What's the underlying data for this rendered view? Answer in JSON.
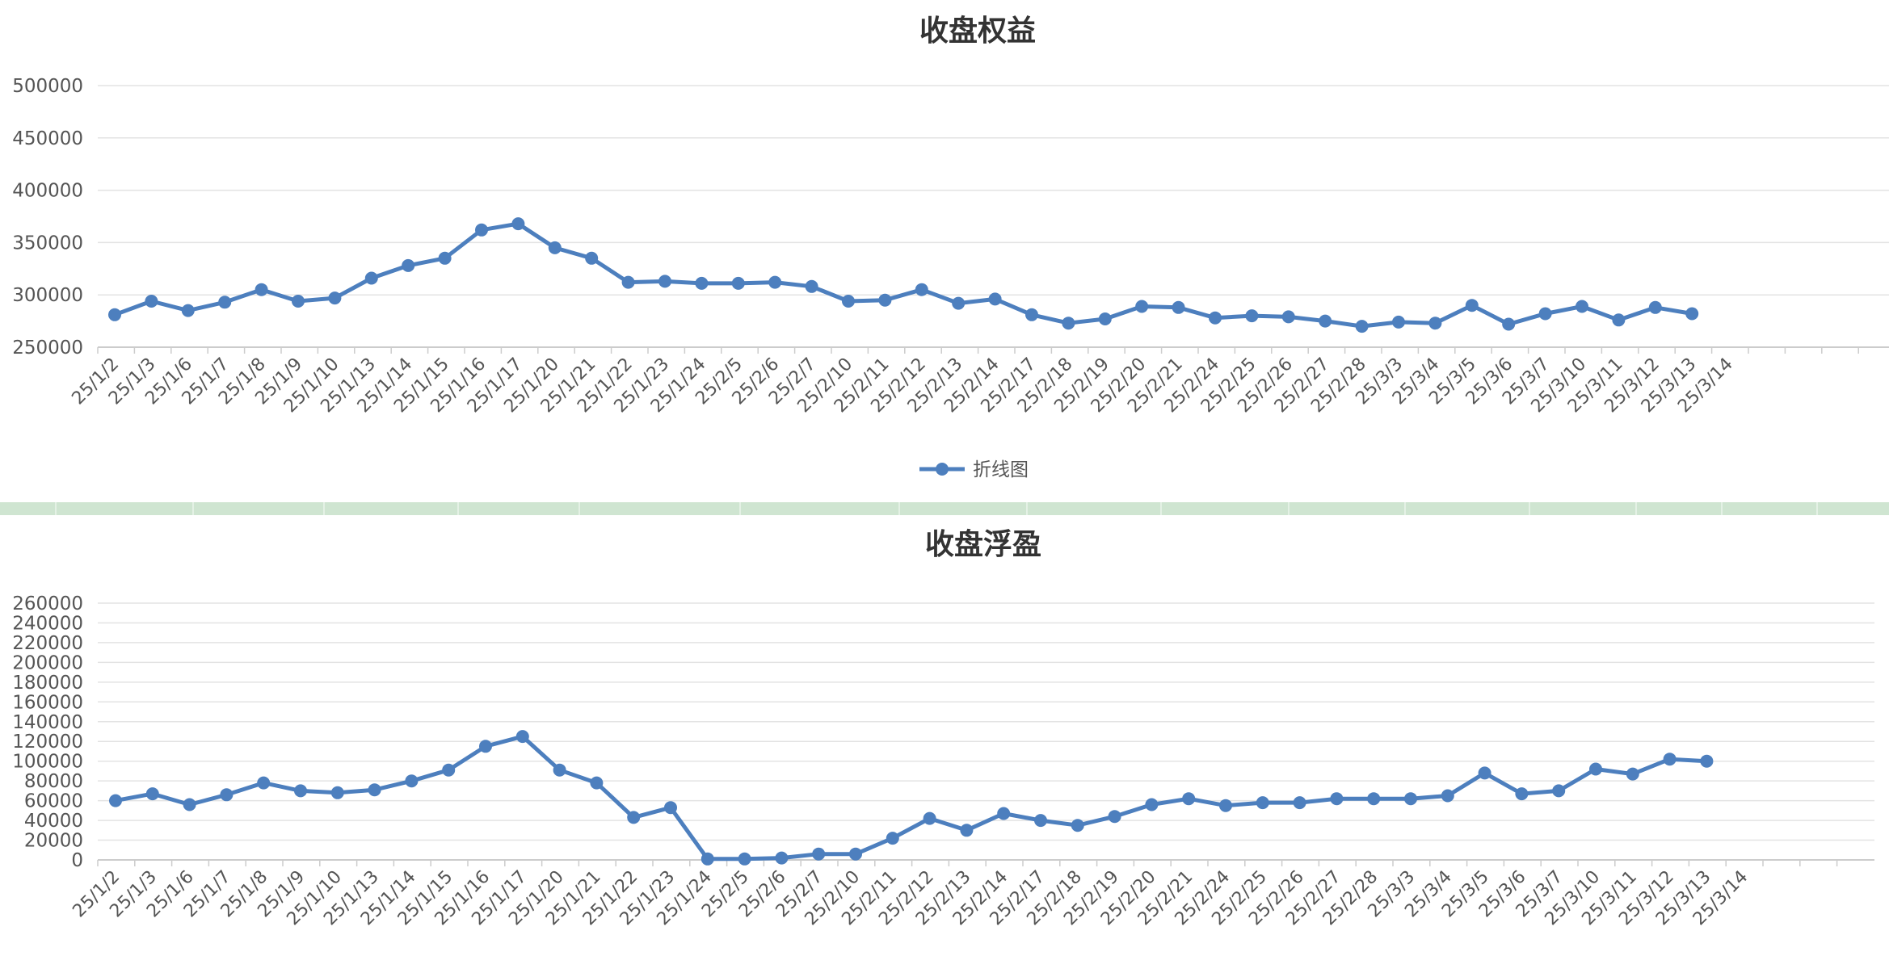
{
  "colors": {
    "series": "#4d7fbe",
    "grid": "#e3e3e3",
    "axis": "#cccccc",
    "divider": "#cfe5d1"
  },
  "chart_data": [
    {
      "type": "line",
      "title": "收盘权益",
      "categories": [
        "25/1/2",
        "25/1/3",
        "25/1/6",
        "25/1/7",
        "25/1/8",
        "25/1/9",
        "25/1/10",
        "25/1/13",
        "25/1/14",
        "25/1/15",
        "25/1/16",
        "25/1/17",
        "25/1/20",
        "25/1/21",
        "25/1/22",
        "25/1/23",
        "25/1/24",
        "25/2/5",
        "25/2/6",
        "25/2/7",
        "25/2/10",
        "25/2/11",
        "25/2/12",
        "25/2/13",
        "25/2/14",
        "25/2/17",
        "25/2/18",
        "25/2/19",
        "25/2/20",
        "25/2/21",
        "25/2/24",
        "25/2/25",
        "25/2/26",
        "25/2/27",
        "25/2/28",
        "25/3/3",
        "25/3/4",
        "25/3/5",
        "25/3/6",
        "25/3/7",
        "25/3/10",
        "25/3/11",
        "25/3/12",
        "25/3/13",
        "25/3/14"
      ],
      "series": [
        {
          "name": "折线图",
          "values": [
            281000,
            294000,
            285000,
            293000,
            305000,
            294000,
            297000,
            316000,
            328000,
            335000,
            362000,
            368000,
            345000,
            335000,
            312000,
            313000,
            311000,
            311000,
            312000,
            308000,
            294000,
            295000,
            305000,
            292000,
            296000,
            281000,
            273000,
            277000,
            289000,
            288000,
            278000,
            280000,
            279000,
            275000,
            270000,
            274000,
            273000,
            290000,
            272000,
            282000,
            289000,
            276000,
            288000,
            282000,
            null
          ]
        }
      ],
      "y_ticks": [
        "500000",
        "450000",
        "400000",
        "350000",
        "300000",
        "250000"
      ],
      "ylim": [
        250000,
        500000
      ],
      "legend": {
        "label": "折线图",
        "position": "bottom"
      },
      "grid": true
    },
    {
      "type": "line",
      "title": "收盘浮盈",
      "categories": [
        "25/1/2",
        "25/1/3",
        "25/1/6",
        "25/1/7",
        "25/1/8",
        "25/1/9",
        "25/1/10",
        "25/1/13",
        "25/1/14",
        "25/1/15",
        "25/1/16",
        "25/1/17",
        "25/1/20",
        "25/1/21",
        "25/1/22",
        "25/1/23",
        "25/1/24",
        "25/2/5",
        "25/2/6",
        "25/2/7",
        "25/2/10",
        "25/2/11",
        "25/2/12",
        "25/2/13",
        "25/2/14",
        "25/2/17",
        "25/2/18",
        "25/2/19",
        "25/2/20",
        "25/2/21",
        "25/2/24",
        "25/2/25",
        "25/2/26",
        "25/2/27",
        "25/2/28",
        "25/3/3",
        "25/3/4",
        "25/3/5",
        "25/3/6",
        "25/3/7",
        "25/3/10",
        "25/3/11",
        "25/3/12",
        "25/3/13",
        "25/3/14"
      ],
      "series": [
        {
          "values": [
            60000,
            67000,
            56000,
            66000,
            78000,
            70000,
            68000,
            71000,
            80000,
            91000,
            115000,
            125000,
            91000,
            78000,
            43000,
            53000,
            1000,
            1000,
            2000,
            6000,
            6000,
            22000,
            42000,
            30000,
            47000,
            40000,
            35000,
            44000,
            56000,
            62000,
            55000,
            58000,
            58000,
            62000,
            62000,
            62000,
            65000,
            88000,
            67000,
            70000,
            92000,
            87000,
            102000,
            100000,
            null
          ]
        }
      ],
      "y_ticks": [
        "260000",
        "240000",
        "220000",
        "200000",
        "180000",
        "160000",
        "140000",
        "120000",
        "100000",
        "80000",
        "60000",
        "40000",
        "20000",
        "0"
      ],
      "ylim": [
        0,
        260000
      ],
      "grid": true
    }
  ]
}
